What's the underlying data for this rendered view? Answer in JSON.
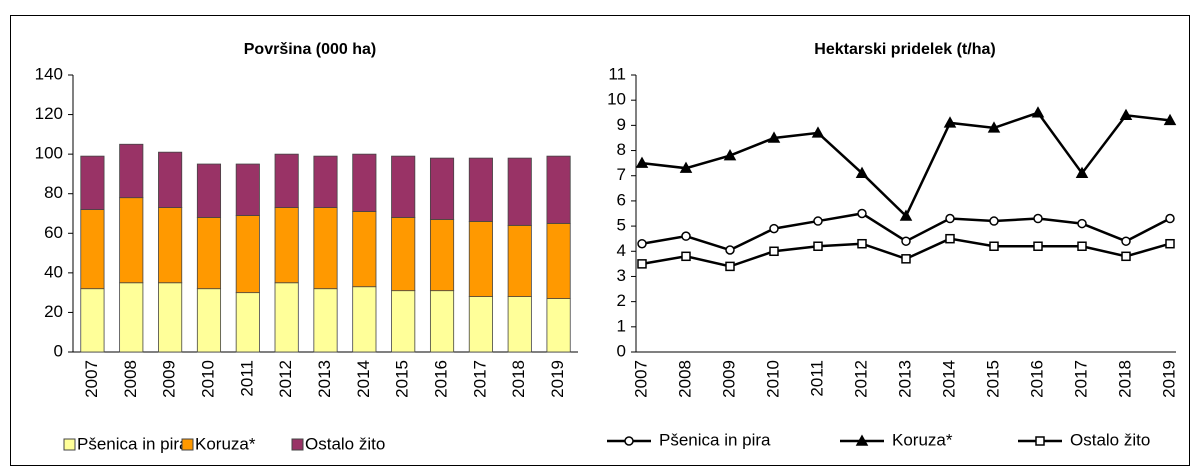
{
  "chart_data": [
    {
      "type": "stacked_bar",
      "title": "Površina (000 ha)",
      "categories": [
        "2007",
        "2008",
        "2009",
        "2010",
        "2011",
        "2012",
        "2013",
        "2014",
        "2015",
        "2016",
        "2017",
        "2018",
        "2019"
      ],
      "series": [
        {
          "name": "Pšenica in pira",
          "color": "#ffff99",
          "values": [
            32,
            35,
            35,
            32,
            30,
            35,
            32,
            33,
            31,
            31,
            28,
            28,
            27
          ]
        },
        {
          "name": "Koruza*",
          "color": "#ff9900",
          "values": [
            40,
            43,
            38,
            36,
            39,
            38,
            41,
            38,
            37,
            36,
            38,
            36,
            38
          ]
        },
        {
          "name": "Ostalo žito",
          "color": "#993366",
          "values": [
            27,
            27,
            28,
            27,
            26,
            27,
            26,
            29,
            31,
            31,
            32,
            34,
            34
          ]
        }
      ],
      "ylim": [
        0,
        140
      ],
      "yticks": [
        0,
        20,
        40,
        60,
        80,
        100,
        120,
        140
      ],
      "grid": false,
      "legend": "bottom"
    },
    {
      "type": "line",
      "title": "Hektarski pridelek (t/ha)",
      "categories": [
        "2007",
        "2008",
        "2009",
        "2010",
        "2011",
        "2012",
        "2013",
        "2014",
        "2015",
        "2016",
        "2017",
        "2018",
        "2019"
      ],
      "series": [
        {
          "name": "Pšenica in pira",
          "color": "#000000",
          "marker": "circle",
          "values": [
            4.3,
            4.6,
            4.05,
            4.9,
            5.2,
            5.5,
            4.4,
            5.3,
            5.2,
            5.3,
            5.1,
            4.4,
            5.3
          ]
        },
        {
          "name": "Koruza*",
          "color": "#000000",
          "marker": "triangle",
          "values": [
            7.5,
            7.3,
            7.8,
            8.5,
            8.7,
            7.1,
            5.4,
            9.1,
            8.9,
            9.5,
            7.1,
            9.4,
            9.2
          ]
        },
        {
          "name": "Ostalo žito",
          "color": "#000000",
          "marker": "square",
          "values": [
            3.5,
            3.8,
            3.4,
            4.0,
            4.2,
            4.3,
            3.7,
            4.5,
            4.2,
            4.2,
            4.2,
            3.8,
            4.3
          ]
        }
      ],
      "ylim": [
        0,
        11
      ],
      "yticks": [
        0,
        1,
        2,
        3,
        4,
        5,
        6,
        7,
        8,
        9,
        10,
        11
      ],
      "grid": false,
      "legend": "bottom"
    }
  ]
}
